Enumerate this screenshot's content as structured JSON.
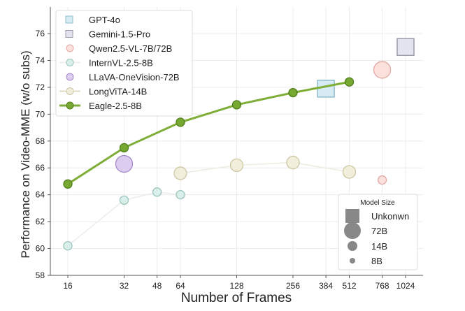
{
  "chart_data": {
    "type": "scatter",
    "xlabel": "Number of Frames",
    "ylabel": "Performance on Video-MME (w/o subs)",
    "x_scale": "log2",
    "xticks": [
      16,
      32,
      48,
      64,
      128,
      256,
      384,
      512,
      768,
      1024
    ],
    "xlim": [
      13,
      1400
    ],
    "yticks": [
      58,
      60,
      62,
      64,
      66,
      68,
      70,
      72,
      74,
      76
    ],
    "ylim": [
      58,
      77.5
    ],
    "grid": true,
    "legend_placement": "top-left",
    "series": [
      {
        "name": "GPT-4o",
        "marker": "square",
        "size": "Unkonwn",
        "color": "#d6ecf2",
        "edge": "#8fbccc",
        "line": false,
        "x": [
          384
        ],
        "y": [
          71.9
        ]
      },
      {
        "name": "Gemini-1.5-Pro",
        "marker": "square",
        "size": "Unkonwn",
        "color": "#e4e4f0",
        "edge": "#9a9aac",
        "line": false,
        "x": [
          1024
        ],
        "y": [
          75.0
        ]
      },
      {
        "name": "Qwen2.5-VL-7B/72B",
        "marker": "circle",
        "size": [
          "72B",
          "8B"
        ],
        "color": "#fbe0dc",
        "edge": "#e0a8a2",
        "line": false,
        "x": [
          768,
          768
        ],
        "y": [
          73.3,
          65.1
        ]
      },
      {
        "name": "InternVL-2.5-8B",
        "marker": "circle",
        "size": "8B",
        "color": "#d9efea",
        "edge": "#9cc4bb",
        "line": true,
        "linecolor": "#e8eeec",
        "x": [
          16,
          32,
          48,
          64
        ],
        "y": [
          60.2,
          63.6,
          64.2,
          64.0
        ]
      },
      {
        "name": "LLaVA-OneVision-72B",
        "marker": "circle",
        "size": "72B",
        "color": "#dccdf0",
        "edge": "#a58ac9",
        "line": false,
        "x": [
          32
        ],
        "y": [
          66.3
        ]
      },
      {
        "name": "LongViTA-14B",
        "marker": "circle",
        "size": "14B",
        "color": "#f1eedb",
        "edge": "#cdc7a4",
        "line": true,
        "linecolor": "#eeece2",
        "x": [
          64,
          128,
          256,
          512
        ],
        "y": [
          65.6,
          66.2,
          66.4,
          65.7
        ]
      },
      {
        "name": "Eagle-2.5-8B",
        "marker": "circle",
        "size": "8B",
        "color": "#76a832",
        "edge": "#4f7d1a",
        "line": true,
        "linecolor": "#7fae38",
        "x": [
          16,
          32,
          64,
          128,
          256,
          512
        ],
        "y": [
          64.8,
          67.5,
          69.4,
          70.7,
          71.6,
          72.4
        ]
      }
    ],
    "size_legend": {
      "title": "Model Size",
      "entries": [
        "Unkonwn",
        "72B",
        "14B",
        "8B"
      ]
    }
  }
}
